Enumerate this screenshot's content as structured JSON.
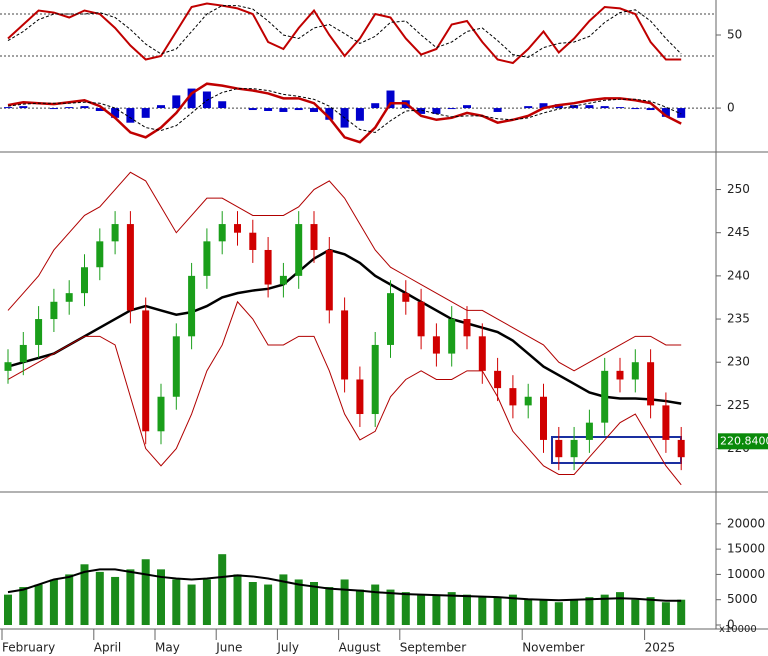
{
  "chart_data": [
    {
      "type": "stochastic",
      "ylim": [
        0,
        100
      ],
      "yticks": [
        50
      ],
      "reference_lines": [
        80,
        20
      ],
      "series": [
        {
          "color": "#c00000",
          "values": [
            45,
            65,
            85,
            82,
            75,
            85,
            80,
            60,
            35,
            15,
            20,
            55,
            90,
            95,
            92,
            88,
            80,
            40,
            30,
            60,
            85,
            50,
            20,
            45,
            80,
            75,
            45,
            22,
            30,
            65,
            70,
            40,
            15,
            10,
            30,
            55,
            25,
            45,
            70,
            90,
            88,
            80,
            40,
            15,
            15
          ]
        },
        {
          "color": "#000000",
          "values": [
            42,
            55,
            72,
            80,
            80,
            80,
            82,
            75,
            58,
            37,
            23,
            30,
            55,
            80,
            92,
            92,
            87,
            70,
            50,
            45,
            60,
            65,
            52,
            38,
            48,
            68,
            70,
            50,
            32,
            40,
            55,
            60,
            42,
            22,
            18,
            32,
            38,
            40,
            48,
            68,
            82,
            86,
            70,
            45,
            23
          ]
        }
      ]
    },
    {
      "type": "macd",
      "ylim": [
        -4.3,
        3.7
      ],
      "yticks": [
        0
      ],
      "histogram_color": "#0000cc",
      "histogram": [
        0.1,
        0.2,
        0,
        -0.1,
        0.1,
        0.2,
        -0.3,
        -1,
        -1.5,
        -1,
        0.3,
        1.3,
        2,
        1.7,
        0.7,
        0,
        -0.2,
        -0.3,
        -0.4,
        -0.2,
        -0.4,
        -1.2,
        -2,
        -1.3,
        0.5,
        1.8,
        0.8,
        -0.6,
        -0.6,
        -0.1,
        0.3,
        0,
        -0.4,
        0,
        0.2,
        0.5,
        0.4,
        0.3,
        0.3,
        0.2,
        0.1,
        -0.1,
        -0.2,
        -0.9,
        -1
      ],
      "series": [
        {
          "color": "#c00000",
          "values": [
            0.3,
            0.6,
            0.5,
            0.4,
            0.6,
            0.8,
            0.2,
            -1,
            -2.5,
            -3,
            -2,
            -0.5,
            1.5,
            2.5,
            2.3,
            2,
            1.8,
            1.5,
            1,
            1,
            0.5,
            -1,
            -3,
            -3.5,
            -2,
            0.5,
            0.5,
            -0.8,
            -1.2,
            -1,
            -0.5,
            -0.8,
            -1.5,
            -1.2,
            -0.8,
            0,
            0.3,
            0.5,
            0.8,
            1,
            1,
            0.8,
            0.5,
            -0.8,
            -1.6
          ]
        },
        {
          "color": "#000000",
          "values": [
            0.2,
            0.4,
            0.5,
            0.5,
            0.5,
            0.6,
            0.5,
            0,
            -1,
            -2,
            -2.3,
            -1.8,
            -0.5,
            0.8,
            1.6,
            2,
            2,
            1.8,
            1.4,
            1.2,
            0.9,
            0.2,
            -1,
            -2.2,
            -2.5,
            -1.3,
            -0.3,
            -0.2,
            -0.6,
            -0.9,
            -0.8,
            -0.8,
            -1.1,
            -1.2,
            -1,
            -0.5,
            -0.1,
            0.2,
            0.5,
            0.8,
            0.9,
            0.9,
            0.7,
            0.1,
            -0.6
          ]
        }
      ]
    },
    {
      "type": "candlestick",
      "ylim": [
        215.2,
        254
      ],
      "yticks": [
        220,
        225,
        230,
        235,
        240,
        245,
        250
      ],
      "up_color": "#1a9e1a",
      "down_color": "#d00000",
      "open": [
        229,
        230,
        232,
        235,
        237,
        238,
        241,
        244,
        246,
        236,
        222,
        226,
        233,
        240,
        244,
        246,
        245,
        243,
        239,
        240,
        246,
        243,
        236,
        228,
        224,
        232,
        238,
        237,
        233,
        231,
        235,
        233,
        229,
        227,
        225,
        226,
        221,
        219,
        221,
        223,
        229,
        228,
        230,
        225,
        221
      ],
      "high": [
        231.5,
        233.5,
        236.5,
        238.5,
        239.5,
        242.5,
        245.5,
        247.5,
        247.5,
        237.5,
        227.5,
        234.5,
        241.5,
        245.5,
        247.5,
        247.5,
        246.5,
        244.5,
        241.5,
        247.5,
        247.5,
        244.5,
        237.5,
        229.5,
        233.5,
        239.5,
        239.5,
        238.5,
        234.5,
        236.5,
        236.5,
        234.5,
        230.5,
        228.5,
        227.5,
        227.5,
        222.5,
        222.5,
        224.5,
        230.5,
        230.5,
        231.5,
        231.5,
        226.5,
        222.5
      ],
      "low": [
        227.5,
        228.5,
        230.5,
        233.5,
        235.5,
        236.5,
        239.5,
        242.5,
        234.5,
        220.5,
        220.5,
        224.5,
        231.5,
        238.5,
        242.5,
        243.5,
        241.5,
        237.5,
        237.5,
        238.5,
        241.5,
        234.5,
        226.5,
        222.5,
        222.5,
        230.5,
        235.5,
        231.5,
        229.5,
        229.5,
        231.5,
        227.5,
        225.5,
        223.5,
        223.5,
        219.5,
        217.5,
        217.5,
        219.5,
        221.5,
        226.5,
        226.5,
        223.5,
        219.5,
        217.5
      ],
      "close": [
        230,
        232,
        235,
        237,
        238,
        241,
        244,
        246,
        236,
        222,
        226,
        233,
        240,
        244,
        246,
        245,
        243,
        239,
        240,
        246,
        243,
        236,
        228,
        224,
        232,
        238,
        237,
        233,
        231,
        235,
        233,
        229,
        227,
        225,
        226,
        221,
        219,
        221,
        223,
        229,
        228,
        230,
        225,
        221,
        219
      ],
      "series": [
        {
          "color": "#000000",
          "values": [
            229.5,
            230,
            230.5,
            231,
            232,
            233,
            234,
            235,
            236,
            236.5,
            236,
            235.5,
            235.8,
            236.5,
            237.5,
            238,
            238.3,
            238.5,
            239,
            240.5,
            242,
            243,
            242.5,
            241.5,
            240,
            239,
            238,
            237,
            236,
            235,
            234.5,
            234,
            233.5,
            232.5,
            231,
            229.5,
            228.5,
            227.5,
            226.5,
            226,
            225.8,
            225.8,
            225.7,
            225.5,
            225.2
          ]
        },
        {
          "color": "#b00000",
          "values": [
            236,
            238,
            240,
            243,
            245,
            247,
            248,
            250,
            252,
            251,
            248,
            245,
            247,
            249,
            249,
            248,
            247,
            247,
            247,
            248,
            250,
            251,
            249,
            246,
            243,
            241,
            240,
            239,
            238,
            237,
            236,
            236,
            235,
            234,
            233,
            232,
            230,
            229,
            230,
            231,
            232,
            233,
            233,
            232,
            232
          ]
        },
        {
          "color": "#b00000",
          "values": [
            228,
            229,
            230,
            231,
            232,
            233,
            233,
            232,
            226,
            220,
            218,
            220,
            224,
            229,
            232,
            237,
            235,
            232,
            232,
            233,
            233,
            229,
            224,
            221,
            222,
            226,
            228,
            229,
            228,
            228,
            229,
            229,
            226,
            222,
            220,
            218,
            217,
            217,
            219,
            221,
            223,
            224,
            221,
            218,
            215.8
          ]
        }
      ],
      "annotation": {
        "value": 220.84,
        "label": "220.8400"
      }
    },
    {
      "type": "volume",
      "ylim": [
        0,
        25700
      ],
      "yticks": [
        0,
        5000,
        10000,
        15000,
        20000
      ],
      "unit_label": "x10000",
      "color": "#1a8a1a",
      "categories": [
        "February",
        null,
        null,
        null,
        null,
        null,
        "April",
        null,
        null,
        null,
        "May",
        null,
        null,
        null,
        "June",
        null,
        null,
        null,
        "July",
        null,
        null,
        null,
        "August",
        null,
        null,
        null,
        "September",
        null,
        null,
        null,
        null,
        null,
        null,
        null,
        "November",
        null,
        null,
        null,
        null,
        null,
        null,
        null,
        "2025",
        null,
        null
      ],
      "values": [
        6000,
        7500,
        8000,
        9000,
        10000,
        12000,
        10500,
        9500,
        11000,
        13000,
        11000,
        9000,
        8000,
        9000,
        14000,
        10000,
        8500,
        8000,
        10000,
        9000,
        8500,
        7500,
        9000,
        7000,
        8000,
        7000,
        6500,
        6000,
        6000,
        6500,
        6000,
        5500,
        5500,
        6000,
        5000,
        5000,
        4500,
        5000,
        5500,
        6000,
        6500,
        5000,
        5500,
        4500,
        5000
      ],
      "series": [
        {
          "color": "#000000",
          "values": [
            6500,
            7000,
            8000,
            9000,
            9500,
            10500,
            11000,
            11000,
            10500,
            10000,
            9500,
            9200,
            9000,
            9200,
            9500,
            9800,
            9600,
            9200,
            8600,
            8000,
            7600,
            7200,
            7000,
            6800,
            6500,
            6300,
            6100,
            6000,
            5900,
            5800,
            5700,
            5600,
            5500,
            5300,
            5100,
            5000,
            4900,
            5000,
            5100,
            5200,
            5300,
            5200,
            5000,
            4800,
            4800
          ]
        }
      ]
    }
  ]
}
